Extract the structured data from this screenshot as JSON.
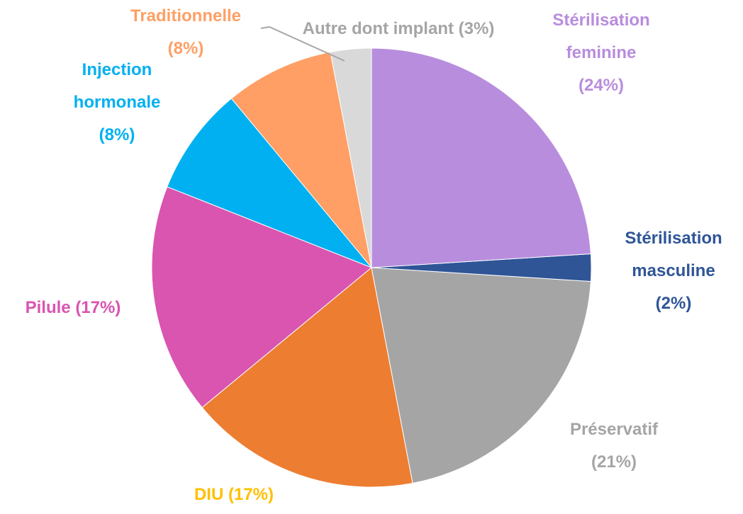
{
  "chart_data": {
    "type": "pie",
    "categories": [
      "Stérilisation feminine",
      "Stérilisation masculine",
      "Préservatif",
      "DIU",
      "Pilule",
      "Injection hormonale",
      "Traditionnelle",
      "Autre dont implant"
    ],
    "values": [
      24,
      2,
      21,
      17,
      17,
      8,
      8,
      3
    ],
    "value_labels": [
      "(24%)",
      "(2%)",
      "(21%)",
      "(17%)",
      "(17%)",
      "(8%)",
      "(8%)",
      "(3%)"
    ],
    "colors": [
      "#b88ddd",
      "#2f5597",
      "#a5a5a5",
      "#ed7d31",
      "#d955b0",
      "#00b0f0",
      "#ff9f65",
      "#d9d9d9"
    ],
    "label_colors": [
      "#b88ddd",
      "#2f5597",
      "#a5a5a5",
      "#ffc000",
      "#d955b0",
      "#00b0f0",
      "#ff9f65",
      "#a5a5a5"
    ]
  }
}
